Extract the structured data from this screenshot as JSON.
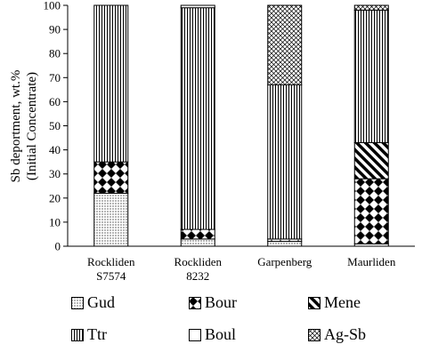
{
  "chart_data": {
    "type": "bar",
    "stacked": true,
    "ylabel_line1": "Sb deportment, wt.%",
    "ylabel_line2": "(Initial Concentrate)",
    "ylim": [
      0,
      100
    ],
    "yticks": [
      "0",
      "10",
      "20",
      "30",
      "40",
      "50",
      "60",
      "70",
      "80",
      "90",
      "100"
    ],
    "categories": [
      {
        "line1": "Rockliden",
        "line2": "S7574"
      },
      {
        "line1": "Rockliden",
        "line2": "8232"
      },
      {
        "line1": "Garpenberg",
        "line2": ""
      },
      {
        "line1": "Maurliden",
        "line2": ""
      }
    ],
    "series": [
      {
        "name": "Gud",
        "pattern": "dots",
        "values": [
          22,
          3,
          2,
          1
        ]
      },
      {
        "name": "Bour",
        "pattern": "checker",
        "values": [
          13,
          4,
          1,
          27
        ]
      },
      {
        "name": "Mene",
        "pattern": "diagonal",
        "values": [
          0,
          0,
          0,
          15
        ]
      },
      {
        "name": "Ttr",
        "pattern": "vertical",
        "values": [
          65,
          92,
          64,
          55
        ]
      },
      {
        "name": "Boul",
        "pattern": "blank",
        "values": [
          0,
          1,
          0,
          0
        ]
      },
      {
        "name": "Ag-Sb",
        "pattern": "crosshatch",
        "values": [
          0,
          0,
          33,
          2
        ]
      }
    ],
    "legend_position": "bottom",
    "grid": false
  }
}
